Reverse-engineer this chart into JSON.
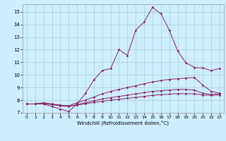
{
  "title": "",
  "xlabel": "Windchill (Refroidissement éolien,°C)",
  "bg_color": "#cceeff",
  "grid_color": "#aacccc",
  "line_color": "#882266",
  "xlim": [
    -0.5,
    23.5
  ],
  "ylim": [
    7.0,
    15.6
  ],
  "xticks": [
    0,
    1,
    2,
    3,
    4,
    5,
    6,
    7,
    8,
    9,
    10,
    11,
    12,
    13,
    14,
    15,
    16,
    17,
    18,
    19,
    20,
    21,
    22,
    23
  ],
  "yticks": [
    7,
    8,
    9,
    10,
    11,
    12,
    13,
    14,
    15
  ],
  "line1_x": [
    0,
    1,
    2,
    3,
    4,
    5,
    6,
    7,
    8,
    9,
    10,
    11,
    12,
    13,
    14,
    15,
    16,
    17,
    18,
    19,
    20,
    21,
    22,
    23
  ],
  "line1_y": [
    7.7,
    7.7,
    7.7,
    7.5,
    7.3,
    7.1,
    7.7,
    8.55,
    9.6,
    10.35,
    10.5,
    12.0,
    11.55,
    13.55,
    14.2,
    15.35,
    14.85,
    13.55,
    11.9,
    10.95,
    10.6,
    10.55,
    10.35,
    10.5
  ],
  "line2_x": [
    0,
    1,
    2,
    3,
    4,
    5,
    6,
    7,
    8,
    9,
    10,
    11,
    12,
    13,
    14,
    15,
    16,
    17,
    18,
    19,
    20,
    21,
    22,
    23
  ],
  "line2_y": [
    7.7,
    7.7,
    7.8,
    7.7,
    7.6,
    7.55,
    7.8,
    8.0,
    8.25,
    8.5,
    8.7,
    8.85,
    9.0,
    9.15,
    9.3,
    9.45,
    9.55,
    9.65,
    9.7,
    9.75,
    9.8,
    9.2,
    8.7,
    8.55
  ],
  "line3_x": [
    0,
    1,
    2,
    3,
    4,
    5,
    6,
    7,
    8,
    9,
    10,
    11,
    12,
    13,
    14,
    15,
    16,
    17,
    18,
    19,
    20,
    21,
    22,
    23
  ],
  "line3_y": [
    7.7,
    7.7,
    7.75,
    7.65,
    7.55,
    7.5,
    7.65,
    7.8,
    7.95,
    8.1,
    8.2,
    8.3,
    8.4,
    8.5,
    8.6,
    8.7,
    8.75,
    8.8,
    8.85,
    8.85,
    8.8,
    8.55,
    8.45,
    8.5
  ],
  "line4_x": [
    0,
    1,
    2,
    3,
    4,
    5,
    6,
    7,
    8,
    9,
    10,
    11,
    12,
    13,
    14,
    15,
    16,
    17,
    18,
    19,
    20,
    21,
    22,
    23
  ],
  "line4_y": [
    7.7,
    7.7,
    7.72,
    7.68,
    7.6,
    7.55,
    7.6,
    7.72,
    7.82,
    7.92,
    8.0,
    8.08,
    8.15,
    8.22,
    8.3,
    8.38,
    8.43,
    8.48,
    8.52,
    8.52,
    8.5,
    8.42,
    8.38,
    8.42
  ]
}
